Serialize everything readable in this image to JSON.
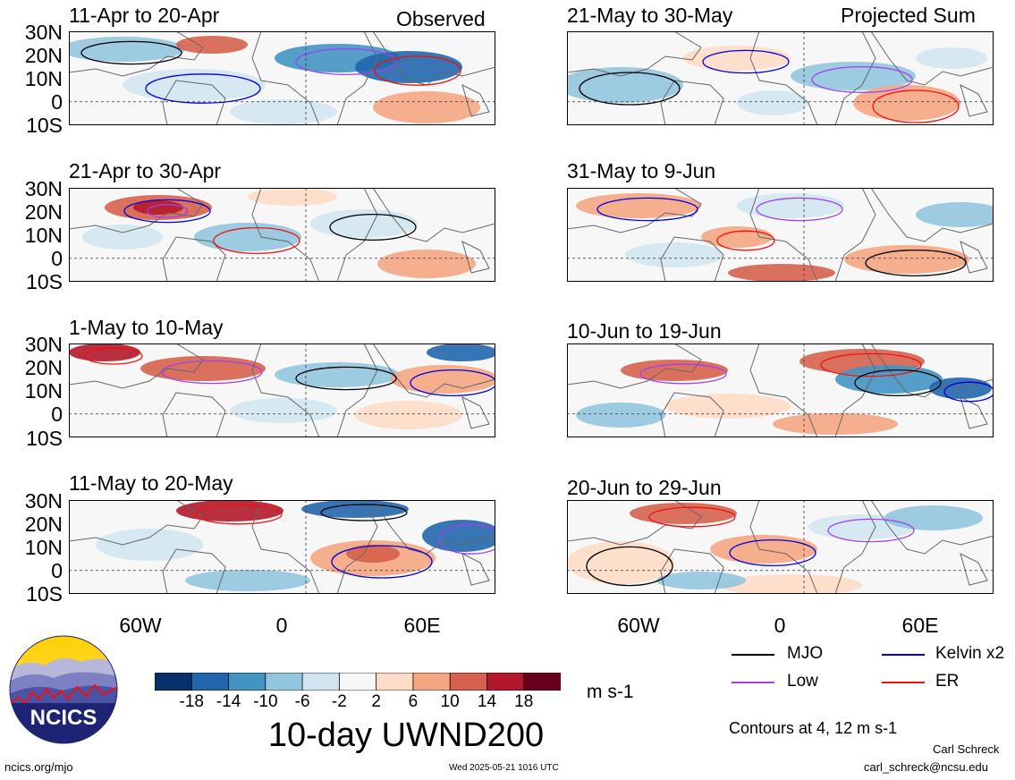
{
  "panels": [
    {
      "title": "11-Apr to 20-Apr",
      "tag": "Observed"
    },
    {
      "title": "21-Apr to 30-Apr",
      "tag": ""
    },
    {
      "title": "1-May to 10-May",
      "tag": ""
    },
    {
      "title": "11-May to 20-May",
      "tag": ""
    },
    {
      "title": "21-May to 30-May",
      "tag": "Projected Sum"
    },
    {
      "title": "31-May to 9-Jun",
      "tag": ""
    },
    {
      "title": "10-Jun to 19-Jun",
      "tag": ""
    },
    {
      "title": "20-Jun to 29-Jun",
      "tag": ""
    }
  ],
  "lat_labels": [
    "30N",
    "20N",
    "10N",
    "0",
    "10S"
  ],
  "lon_labels": [
    "60W",
    "0",
    "60E"
  ],
  "colorbar": {
    "ticks": [
      "-18",
      "-14",
      "-10",
      "-6",
      "-2",
      "2",
      "6",
      "10",
      "14",
      "18"
    ],
    "colors": [
      "#08306b",
      "#2166ac",
      "#4393c3",
      "#92c5de",
      "#d1e5f0",
      "#f7f7f7",
      "#fddbc7",
      "#f4a582",
      "#d6604d",
      "#b2182b",
      "#67001f"
    ],
    "units": "m s-1"
  },
  "main_title": "10-day UWND200",
  "legend": [
    {
      "label": "MJO",
      "color": "#000000"
    },
    {
      "label": "Kelvin x2",
      "color": "#0000dd"
    },
    {
      "label": "Low",
      "color": "#a040f0"
    },
    {
      "label": "ER",
      "color": "#ee1111"
    }
  ],
  "contours_note": "Contours at 4, 12 m s-1",
  "logo_text": "NCICS",
  "footer": {
    "url": "ncics.org/mjo",
    "timestamp": "Wed 2025-05-21 1016 UTC",
    "author": "Carl Schreck",
    "email": "carl_schreck@ncsu.edu"
  }
}
